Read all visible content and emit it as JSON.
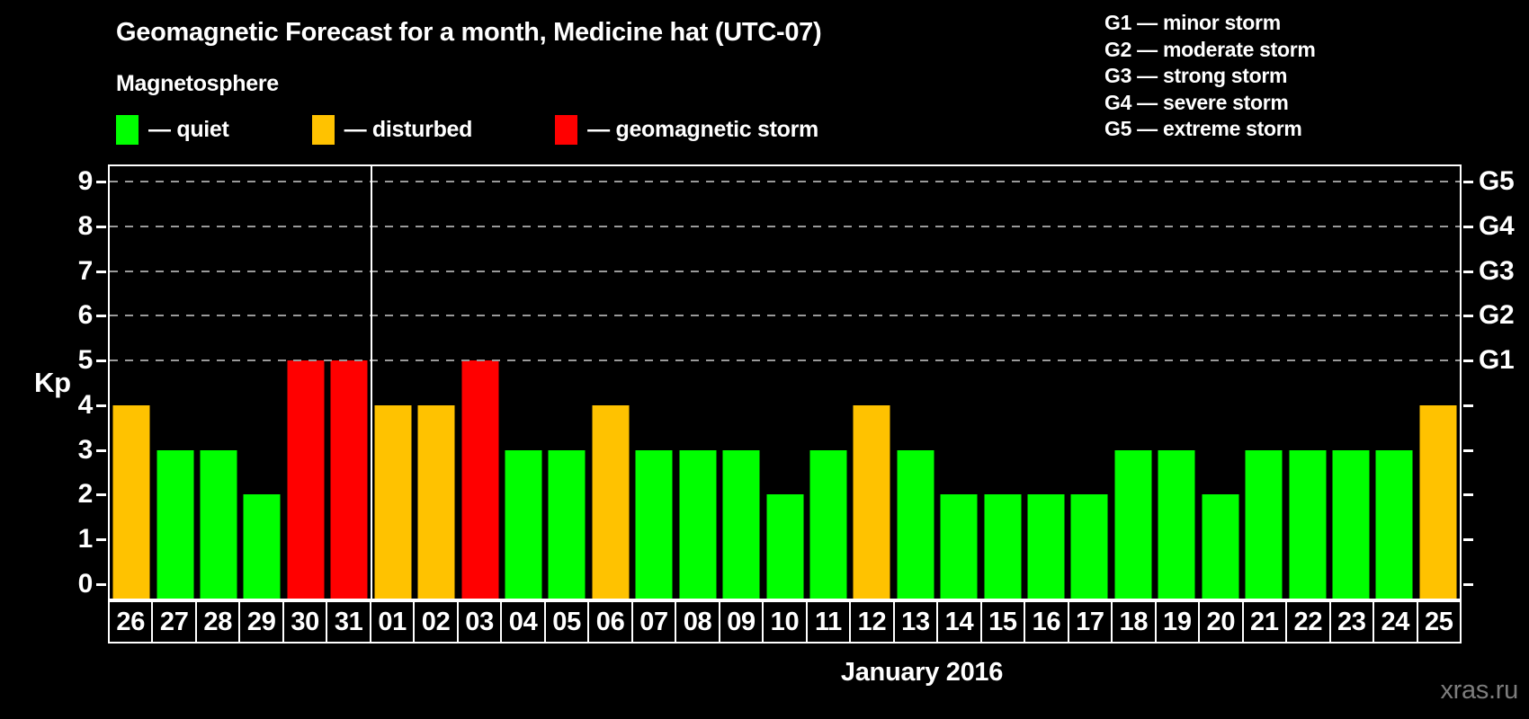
{
  "title": "Geomagnetic Forecast for a month, Medicine hat (UTC-07)",
  "magnetosphere_label": "Magnetosphere",
  "legend": [
    {
      "key": "quiet",
      "label": "— quiet",
      "color": "#00ff00"
    },
    {
      "key": "disturbed",
      "label": "— disturbed",
      "color": "#ffc200"
    },
    {
      "key": "storm",
      "label": "— geomagnetic storm",
      "color": "#ff0000"
    }
  ],
  "g_legend": [
    "G1 — minor storm",
    "G2 — moderate storm",
    "G3 — strong storm",
    "G4 — severe storm",
    "G5 — extreme storm"
  ],
  "watermark": "xras.ru",
  "colors": {
    "quiet": "#00ff00",
    "disturbed": "#ffc200",
    "storm": "#ff0000",
    "grid": "#9a9a9a",
    "axis": "#ffffff",
    "watermark": "#7d7d7d"
  },
  "chart_data": {
    "type": "bar",
    "title": "Geomagnetic Forecast for a month, Medicine hat (UTC-07)",
    "ylabel": "Kp",
    "xlabel": "January 2016",
    "ylim": [
      0,
      9
    ],
    "y_ticks": [
      0,
      1,
      2,
      3,
      4,
      5,
      6,
      7,
      8,
      9
    ],
    "grid_levels": [
      5,
      6,
      7,
      8,
      9
    ],
    "grid_style": "dashed",
    "legend_position": "top-left",
    "right_axis_labels": [
      {
        "kp": 5,
        "text": "G1"
      },
      {
        "kp": 6,
        "text": "G2"
      },
      {
        "kp": 7,
        "text": "G3"
      },
      {
        "kp": 8,
        "text": "G4"
      },
      {
        "kp": 9,
        "text": "G5"
      }
    ],
    "month_break_after_index": 5,
    "categories": [
      "26",
      "27",
      "28",
      "29",
      "30",
      "31",
      "01",
      "02",
      "03",
      "04",
      "05",
      "06",
      "07",
      "08",
      "09",
      "10",
      "11",
      "12",
      "13",
      "14",
      "15",
      "16",
      "17",
      "18",
      "19",
      "20",
      "21",
      "22",
      "23",
      "24",
      "25"
    ],
    "values": [
      4,
      3,
      3,
      2,
      5,
      5,
      4,
      4,
      5,
      3,
      3,
      4,
      3,
      3,
      3,
      2,
      3,
      4,
      3,
      2,
      2,
      2,
      2,
      3,
      3,
      2,
      3,
      3,
      3,
      3,
      4
    ],
    "levels": [
      "disturbed",
      "quiet",
      "quiet",
      "quiet",
      "storm",
      "storm",
      "disturbed",
      "disturbed",
      "storm",
      "quiet",
      "quiet",
      "disturbed",
      "quiet",
      "quiet",
      "quiet",
      "quiet",
      "quiet",
      "disturbed",
      "quiet",
      "quiet",
      "quiet",
      "quiet",
      "quiet",
      "quiet",
      "quiet",
      "quiet",
      "quiet",
      "quiet",
      "quiet",
      "quiet",
      "disturbed"
    ]
  }
}
